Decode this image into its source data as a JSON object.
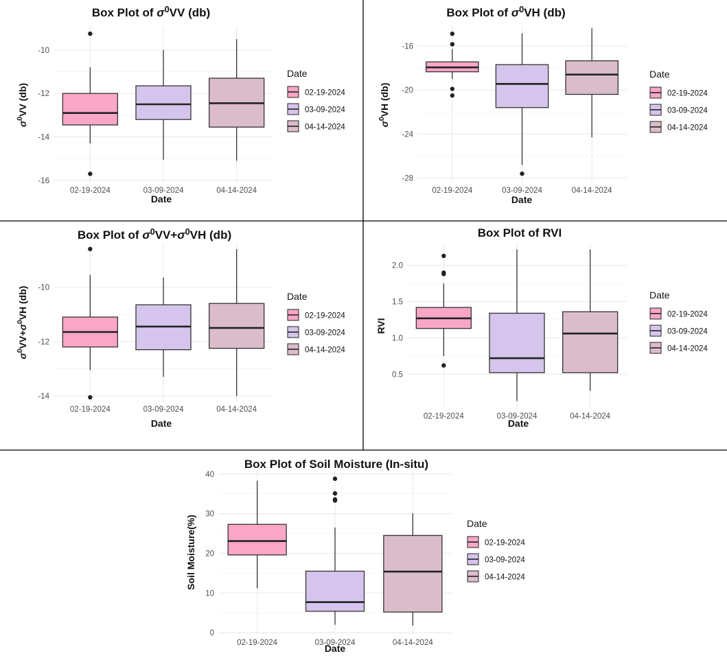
{
  "legend_title": "Date",
  "chart_data": [
    {
      "type": "box",
      "title": "Box Plot of σ⁰VV (db)",
      "title_parts": [
        "Box Plot of ",
        "σ",
        "0",
        "VV",
        " (db)"
      ],
      "xlabel": "Date",
      "ylabel_parts": [
        "σ",
        "0",
        "VV (db)"
      ],
      "categories": [
        "02-19-2024",
        "03-09-2024",
        "04-14-2024"
      ],
      "ylim": [
        -16.1,
        -8.9
      ],
      "yticks": [
        -10,
        -12,
        -14,
        -16
      ],
      "ytick_labels": [
        "-10",
        "-12",
        "-14",
        "-16"
      ],
      "legend": [
        "02-19-2024",
        "03-09-2024",
        "04-14-2024"
      ],
      "boxes": [
        {
          "min": -14.3,
          "q1": -13.45,
          "median": -12.9,
          "q3": -12.0,
          "max": -10.8,
          "outliers": [
            -9.25,
            -15.7
          ]
        },
        {
          "min": -15.05,
          "q1": -13.2,
          "median": -12.5,
          "q3": -11.65,
          "max": -10.0,
          "outliers": []
        },
        {
          "min": -15.1,
          "q1": -13.55,
          "median": -12.45,
          "q3": -11.3,
          "max": -9.5,
          "outliers": []
        }
      ]
    },
    {
      "type": "box",
      "title": "Box Plot of σ⁰VH (db)",
      "title_parts": [
        "Box Plot of ",
        "σ",
        "0",
        "VH",
        " (db)"
      ],
      "xlabel": "Date",
      "ylabel_parts": [
        "σ",
        "0",
        "VH (db)"
      ],
      "categories": [
        "02-19-2024",
        "03-09-2024",
        "04-14-2024"
      ],
      "ylim": [
        -28.4,
        -14.2
      ],
      "yticks": [
        -16,
        -20,
        -24,
        -28
      ],
      "ytick_labels": [
        "-16",
        "-20",
        "-24",
        "-28"
      ],
      "legend": [
        "02-19-2024",
        "03-09-2024",
        "04-14-2024"
      ],
      "boxes": [
        {
          "min": -19.0,
          "q1": -18.35,
          "median": -17.95,
          "q3": -17.45,
          "max": -16.3,
          "outliers": [
            -14.9,
            -15.85,
            -19.9,
            -20.5
          ]
        },
        {
          "min": -26.8,
          "q1": -21.6,
          "median": -19.45,
          "q3": -17.7,
          "max": -14.85,
          "outliers": [
            -27.6
          ]
        },
        {
          "min": -24.3,
          "q1": -20.4,
          "median": -18.6,
          "q3": -17.35,
          "max": -14.4,
          "outliers": []
        }
      ]
    },
    {
      "type": "box",
      "title": "Box Plot of σ⁰VV+σ⁰VH (db)",
      "title_parts": [
        "Box Plot of ",
        "σ",
        "0",
        "VV+",
        "σ",
        "0",
        "VH",
        " (db)"
      ],
      "xlabel": "Date",
      "ylabel_parts": [
        "σ",
        "0",
        "VV+",
        "σ",
        "0",
        "VH (db)"
      ],
      "categories": [
        "02-19-2024",
        "03-09-2024",
        "04-14-2024"
      ],
      "ylim": [
        -14.2,
        -8.4
      ],
      "yticks": [
        -10,
        -12,
        -14
      ],
      "ytick_labels": [
        "-10",
        "-12",
        "-14"
      ],
      "legend": [
        "02-19-2024",
        "03-09-2024",
        "04-14-2024"
      ],
      "boxes": [
        {
          "min": -13.05,
          "q1": -12.2,
          "median": -11.65,
          "q3": -11.1,
          "max": -9.55,
          "outliers": [
            -8.6,
            -14.05
          ]
        },
        {
          "min": -13.3,
          "q1": -12.3,
          "median": -11.45,
          "q3": -10.65,
          "max": -9.65,
          "outliers": []
        },
        {
          "min": -14.0,
          "q1": -12.25,
          "median": -11.5,
          "q3": -10.6,
          "max": -8.6,
          "outliers": []
        }
      ]
    },
    {
      "type": "box",
      "title": "Box Plot of RVI",
      "xlabel": "Date",
      "ylabel": "RVI",
      "categories": [
        "02-19-2024",
        "03-09-2024",
        "04-14-2024"
      ],
      "ylim": [
        0.03,
        2.3
      ],
      "yticks": [
        2.0,
        1.5,
        1.0,
        0.5
      ],
      "ytick_labels": [
        "2.0",
        "1.5",
        "1.0",
        "0.5"
      ],
      "legend": [
        "02-19-2024",
        "03-09-2024",
        "04-14-2024"
      ],
      "boxes": [
        {
          "min": 0.75,
          "q1": 1.13,
          "median": 1.27,
          "q3": 1.42,
          "max": 1.75,
          "outliers": [
            2.13,
            1.88,
            1.9,
            0.62
          ]
        },
        {
          "min": 0.13,
          "q1": 0.52,
          "median": 0.72,
          "q3": 1.34,
          "max": 2.22,
          "outliers": []
        },
        {
          "min": 0.27,
          "q1": 0.52,
          "median": 1.06,
          "q3": 1.36,
          "max": 2.22,
          "outliers": []
        }
      ]
    },
    {
      "type": "box",
      "title": "Box Plot of Soil Moisture (In-situ)",
      "xlabel": "Date",
      "ylabel": "Soil Moisture(%)",
      "categories": [
        "02-19-2024",
        "03-09-2024",
        "04-14-2024"
      ],
      "ylim": [
        -0.5,
        41
      ],
      "yticks": [
        40,
        30,
        20,
        10,
        0
      ],
      "ytick_labels": [
        "40",
        "30",
        "20",
        "10",
        "0"
      ],
      "legend": [
        "02-19-2024",
        "03-09-2024",
        "04-14-2024"
      ],
      "boxes": [
        {
          "min": 11.2,
          "q1": 19.6,
          "median": 23.1,
          "q3": 27.3,
          "max": 38.3,
          "outliers": []
        },
        {
          "min": 2.0,
          "q1": 5.4,
          "median": 7.7,
          "q3": 15.5,
          "max": 26.5,
          "outliers": [
            38.8,
            35.1,
            33.6,
            33.3
          ]
        },
        {
          "min": 1.8,
          "q1": 5.2,
          "median": 15.4,
          "q3": 24.5,
          "max": 30.1,
          "outliers": []
        }
      ]
    }
  ],
  "colors": {
    "fills": [
      "#f9a6c7",
      "#d5c5ec",
      "#dbbccb"
    ],
    "outline": "#333333",
    "grid": "#ebebeb",
    "divider": "#000000"
  }
}
